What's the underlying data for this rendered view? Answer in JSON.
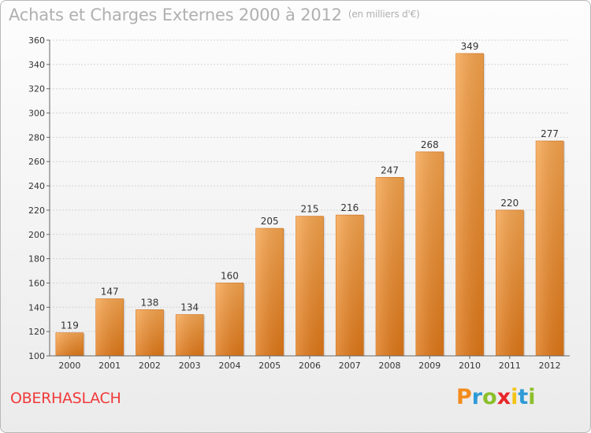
{
  "header": {
    "title": "Achats et Charges Externes 2000 à 2012",
    "unit": "(en milliers d'€)"
  },
  "footer": {
    "commune": "OBERHASLACH",
    "logo_letters": [
      "P",
      "r",
      "o",
      "x",
      "i",
      "t",
      "i"
    ],
    "logo_colors": [
      "#f28c1e",
      "#2f9ad6",
      "#8bbf2a",
      "#e8262a",
      "#f4c316",
      "#2f9ad6",
      "#8bbf2a"
    ]
  },
  "chart_data": {
    "type": "bar",
    "title": "Achats et Charges Externes 2000 à 2012",
    "subtitle": "(en milliers d'€)",
    "categories": [
      "2000",
      "2001",
      "2002",
      "2003",
      "2004",
      "2005",
      "2006",
      "2007",
      "2008",
      "2009",
      "2010",
      "2011",
      "2012"
    ],
    "values": [
      119,
      147,
      138,
      134,
      160,
      205,
      215,
      216,
      247,
      268,
      349,
      220,
      277
    ],
    "ylim": [
      100,
      360
    ],
    "yticks": [
      100,
      120,
      140,
      160,
      180,
      200,
      220,
      240,
      260,
      280,
      300,
      320,
      340,
      360
    ],
    "grid": true,
    "bar_color": "#f0963a",
    "xlabel": "",
    "ylabel": ""
  }
}
